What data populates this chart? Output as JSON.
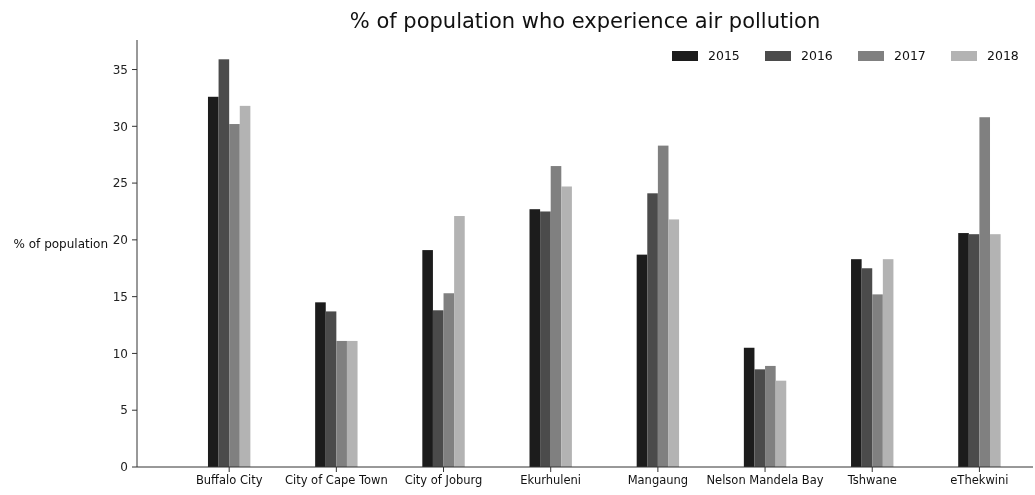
{
  "chart_data": {
    "type": "bar",
    "title": "% of population who experience air pollution",
    "ylabel": "% of population",
    "categories": [
      "Buffalo City",
      "City of Cape Town",
      "City of Joburg",
      "Ekurhuleni",
      "Mangaung",
      "Nelson Mandela Bay",
      "Tshwane",
      "eThekwini"
    ],
    "series": [
      {
        "name": "2015",
        "color": "#1c1c1c",
        "values": [
          32.6,
          14.5,
          19.1,
          22.7,
          18.7,
          10.5,
          18.3,
          20.6
        ]
      },
      {
        "name": "2016",
        "color": "#4b4b4b",
        "values": [
          35.9,
          13.7,
          13.8,
          22.5,
          24.1,
          8.6,
          17.5,
          20.5
        ]
      },
      {
        "name": "2017",
        "color": "#808080",
        "values": [
          30.2,
          11.1,
          15.3,
          26.5,
          28.3,
          8.9,
          15.2,
          30.8
        ]
      },
      {
        "name": "2018",
        "color": "#b3b3b3",
        "values": [
          31.8,
          11.1,
          22.1,
          24.7,
          21.8,
          7.6,
          18.3,
          20.5
        ]
      }
    ],
    "ylim": [
      0,
      37.6
    ],
    "yticks": [
      0,
      5,
      10,
      15,
      20,
      25,
      30,
      35
    ],
    "grid": false,
    "legend": "top right"
  }
}
